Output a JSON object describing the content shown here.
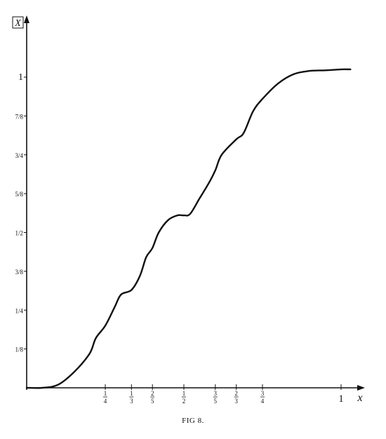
{
  "chart_data": {
    "type": "line",
    "title": "",
    "xlabel": "x",
    "ylabel": "X",
    "xlim": [
      0,
      1.03
    ],
    "ylim": [
      0,
      1.03
    ],
    "grid": false,
    "x_ticks": [
      {
        "value": 0.25,
        "label": "1/4",
        "num": "1",
        "den": "4"
      },
      {
        "value": 0.3333,
        "label": "1/3",
        "num": "1",
        "den": "3"
      },
      {
        "value": 0.4,
        "label": "2/5",
        "num": "2",
        "den": "5"
      },
      {
        "value": 0.5,
        "label": "1/2",
        "num": "1",
        "den": "2"
      },
      {
        "value": 0.6,
        "label": "3/5",
        "num": "3",
        "den": "5"
      },
      {
        "value": 0.6667,
        "label": "2/3",
        "num": "2",
        "den": "3"
      },
      {
        "value": 0.75,
        "label": "3/4",
        "num": "3",
        "den": "4"
      },
      {
        "value": 1,
        "label": "1",
        "num": "",
        "den": ""
      }
    ],
    "y_ticks": [
      {
        "value": 0.125,
        "label": "1/8"
      },
      {
        "value": 0.25,
        "label": "1/4"
      },
      {
        "value": 0.375,
        "label": "3/8"
      },
      {
        "value": 0.5,
        "label": "1/2"
      },
      {
        "value": 0.625,
        "label": "5/8"
      },
      {
        "value": 0.75,
        "label": "3/4"
      },
      {
        "value": 0.875,
        "label": "7/8"
      },
      {
        "value": 1,
        "label": "1"
      }
    ],
    "series": [
      {
        "x": [
          0.0,
          0.05,
          0.1,
          0.15,
          0.2,
          0.22,
          0.25,
          0.28,
          0.3,
          0.3333,
          0.36,
          0.38,
          0.4,
          0.42,
          0.45,
          0.48,
          0.5,
          0.52,
          0.55,
          0.58,
          0.6,
          0.62,
          0.6667,
          0.69,
          0.72,
          0.75,
          0.8,
          0.85,
          0.9,
          0.95,
          1.0,
          1.03
        ],
        "y": [
          0.0,
          0.0,
          0.01,
          0.05,
          0.11,
          0.16,
          0.2,
          0.26,
          0.3,
          0.315,
          0.36,
          0.42,
          0.45,
          0.5,
          0.54,
          0.555,
          0.555,
          0.56,
          0.61,
          0.66,
          0.7,
          0.75,
          0.8,
          0.82,
          0.89,
          0.93,
          0.98,
          1.01,
          1.02,
          1.022,
          1.025,
          1.025
        ]
      }
    ]
  },
  "caption": "FIG 8.",
  "colors": {
    "line": "#111111",
    "background": "#ffffff"
  }
}
